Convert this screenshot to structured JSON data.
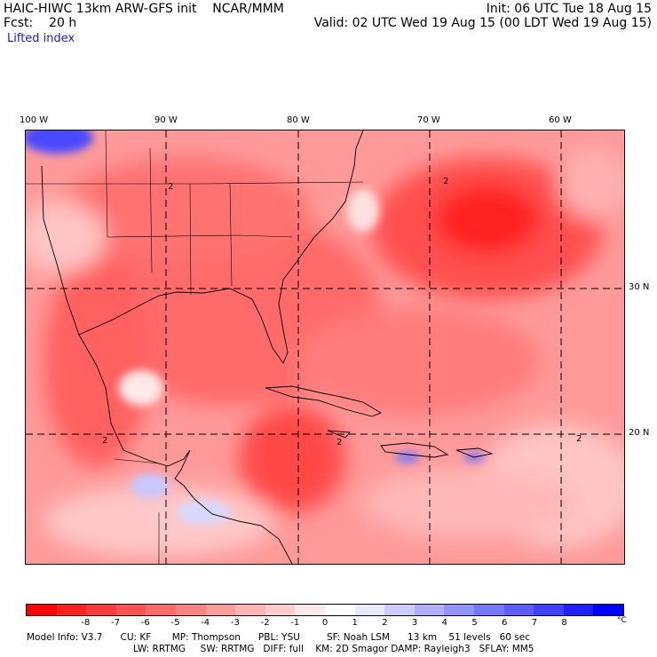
{
  "header": {
    "title": "HAIC-HIWC 13km ARW-GFS init    NCAR/MMM",
    "fcst": "Fcst:    20 h",
    "init": "Init: 06 UTC Tue 18 Aug 15",
    "valid": "Valid: 02 UTC Wed 19 Aug 15 (00 LDT Wed 19 Aug 15)",
    "field": "Lifted index"
  },
  "map": {
    "lon_labels": [
      "100 W",
      "90 W",
      "80 W",
      "70 W",
      "60 W"
    ],
    "lat_labels": [
      "30 N",
      "20 N"
    ],
    "contour_labels": [
      "2",
      "2",
      "2",
      "2",
      "2"
    ]
  },
  "colorbar": {
    "colors": [
      "#ff0000",
      "#ff2020",
      "#ff3a3a",
      "#ff5252",
      "#ff6a6a",
      "#ff8282",
      "#ff9c9c",
      "#ffb4b4",
      "#ffcccc",
      "#ffe8e8",
      "#ffffff",
      "#e8e8ff",
      "#ccccff",
      "#b0b0ff",
      "#9494ff",
      "#7878ff",
      "#5c5cff",
      "#4040ff",
      "#2020ff",
      "#0000ff"
    ],
    "ticks": [
      "-8",
      "-7",
      "-6",
      "-5",
      "-4",
      "-3",
      "-2",
      "-1",
      "0",
      "1",
      "2",
      "3",
      "4",
      "5",
      "6",
      "7",
      "8"
    ],
    "unit": "°C"
  },
  "footer": {
    "line1": "Model Info: V3.7      CU: KF       MP: Thompson      PBL: YSU         SF: Noah LSM      13 km    51 levels   60 sec",
    "line2": "LW: RRTMG     SW: RRTMG   DIFF: full    KM: 2D Smagor DAMP: Rayleigh3   SFLAY: MM5"
  }
}
